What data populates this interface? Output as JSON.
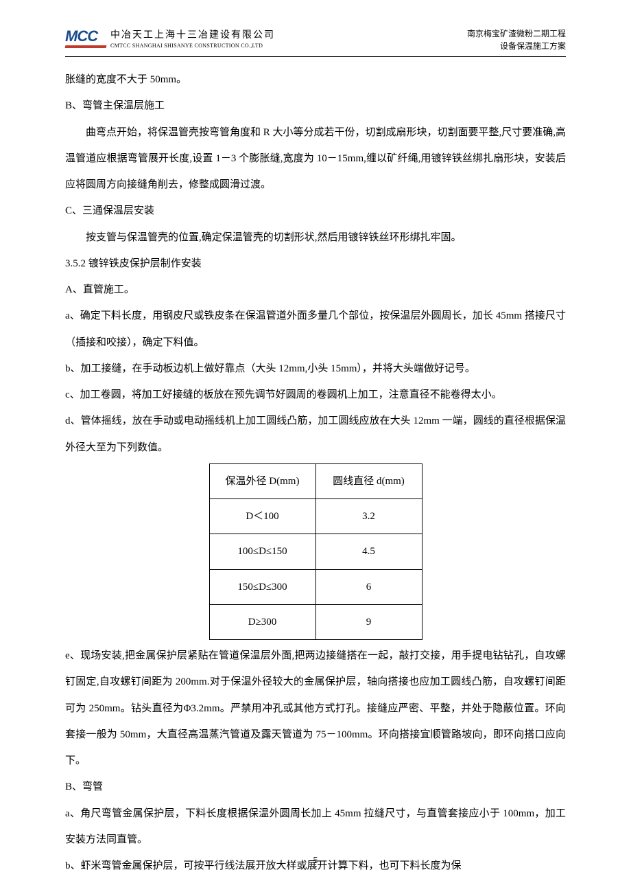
{
  "header": {
    "logo_text": "MCC",
    "company_cn": "中冶天工上海十三冶建设有限公司",
    "company_en": "CMTCC  SHANGHAI  SHISANYE  CONSTRUCTION  CO.,LTD",
    "project_line1": "南京梅宝矿渣微粉二期工程",
    "project_line2": "设备保温施工方案"
  },
  "body": {
    "p1": "胀缝的宽度不大于 50mm。",
    "p2": "B、弯管主保温层施工",
    "p3": "曲弯点开始，将保温管壳按弯管角度和 R 大小等分成若干份，切割成扇形块，切割面要平整,尺寸要准确,高温管道应根据弯管展开长度,设置 1－3 个膨胀缝,宽度为 10－15mm,缠以矿纤绳,用镀锌铁丝绑扎扇形块，安装后应将圆周方向接缝角削去，修整成圆滑过渡。",
    "p4": "C、三通保温层安装",
    "p5": "按支管与保温管壳的位置,确定保温管壳的切割形状,然后用镀锌铁丝环形绑扎牢固。",
    "p6": "3.5.2 镀锌铁皮保护层制作安装",
    "p7": "A、直管施工。",
    "p8": "a、确定下料长度，用钢皮尺或铁皮条在保温管道外面多量几个部位，按保温层外圆周长，加长 45mm 搭接尺寸（插接和咬接），确定下料值。",
    "p9": "b、加工接缝，在手动板边机上做好靠点（大头 12mm,小头 15mm），并将大头端做好记号。",
    "p10": "c、加工卷圆，将加工好接缝的板放在预先调节好圆周的卷圆机上加工，注意直径不能卷得太小。",
    "p11": "d、管体摇线，放在手动或电动摇线机上加工圆线凸筋，加工圆线应放在大头 12mm 一端，圆线的直径根据保温外径大至为下列数值。",
    "p12": "e、现场安装,把金属保护层紧贴在管道保温层外面,把两边接缝搭在一起，敲打交接，用手提电钻钻孔，自攻螺钉固定,自攻螺钉间距为 200mm.对于保温外径较大的金属保护层，轴向搭接也应加工圆线凸筋，自攻螺钉间距可为 250mm。钻头直径为Φ3.2mm。严禁用冲孔或其他方式打孔。接缝应严密、平整，并处于隐蔽位置。环向套接一般为 50mm，大直径高温蒸汽管道及露天管道为 75－100mm。环向搭接宜顺管路坡向，即环向搭口应向下。",
    "p13": "B、弯管",
    "p14": "a、角尺弯管金属保护层，下料长度根据保温外圆周长加上 45mm 拉缝尺寸，与直管套接应小于 100mm，加工安装方法同直管。",
    "p15": "b、虾米弯管金属保护层，可按平行线法展开放大样或展开计算下料，也可下料长度为保"
  },
  "table": {
    "header_col1": "保温外径 D(mm)",
    "header_col2": "圆线直径 d(mm)",
    "rows": [
      {
        "c1": "D＜100",
        "c2": "3.2"
      },
      {
        "c1": "100≤D≤150",
        "c2": "4.5"
      },
      {
        "c1": "150≤D≤300",
        "c2": "6"
      },
      {
        "c1": "D≥300",
        "c2": "9"
      }
    ]
  },
  "page_number": "5",
  "colors": {
    "logo_blue": "#1a4b8c",
    "logo_red": "#c0392b",
    "text": "#000000",
    "background": "#ffffff"
  }
}
